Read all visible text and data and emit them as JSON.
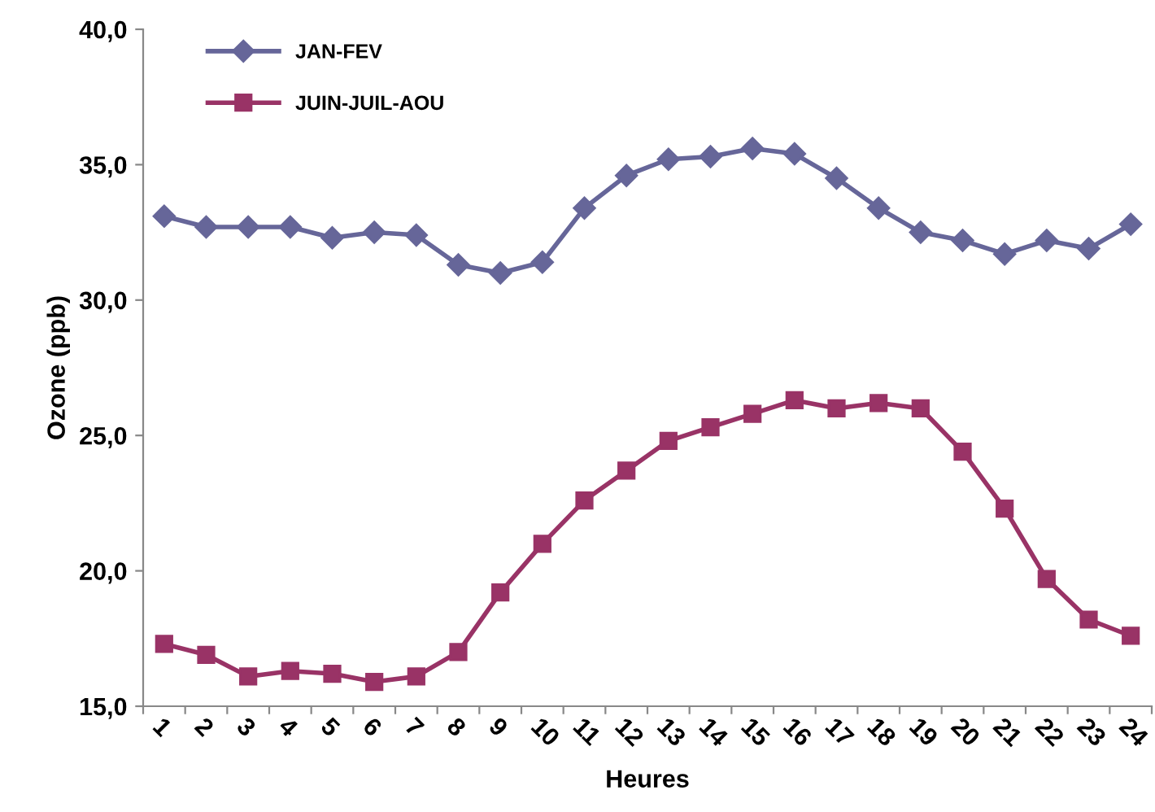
{
  "chart_data": {
    "type": "line",
    "xlabel": "Heures",
    "ylabel": "Ozone (ppb)",
    "categories": [
      "1",
      "2",
      "3",
      "4",
      "5",
      "6",
      "7",
      "8",
      "9",
      "10",
      "11",
      "12",
      "13",
      "14",
      "15",
      "16",
      "17",
      "18",
      "19",
      "20",
      "21",
      "22",
      "23",
      "24"
    ],
    "series": [
      {
        "name": "JAN-FEV",
        "color": "#666699",
        "marker": "diamond",
        "values": [
          33.1,
          32.7,
          32.7,
          32.7,
          32.3,
          32.5,
          32.4,
          31.3,
          31.0,
          31.4,
          33.4,
          34.6,
          35.2,
          35.3,
          35.6,
          35.4,
          34.5,
          33.4,
          32.5,
          32.2,
          31.7,
          32.2,
          31.9,
          32.8
        ]
      },
      {
        "name": "JUIN-JUIL-AOU",
        "color": "#993366",
        "marker": "square",
        "values": [
          17.3,
          16.9,
          16.1,
          16.3,
          16.2,
          15.9,
          16.1,
          17.0,
          19.2,
          21.0,
          22.6,
          23.7,
          24.8,
          25.3,
          25.8,
          26.3,
          26.0,
          26.2,
          26.0,
          24.4,
          22.3,
          19.7,
          18.2,
          17.6
        ]
      }
    ],
    "ylim": [
      15,
      40
    ],
    "yticks": [
      {
        "value": 15,
        "label": "15,0"
      },
      {
        "value": 20,
        "label": "20,0"
      },
      {
        "value": 25,
        "label": "25,0"
      },
      {
        "value": 30,
        "label": "30,0"
      },
      {
        "value": 35,
        "label": "35,0"
      },
      {
        "value": 40,
        "label": "40,0"
      }
    ],
    "grid": false,
    "legend": "top left",
    "line_style": "solid"
  }
}
